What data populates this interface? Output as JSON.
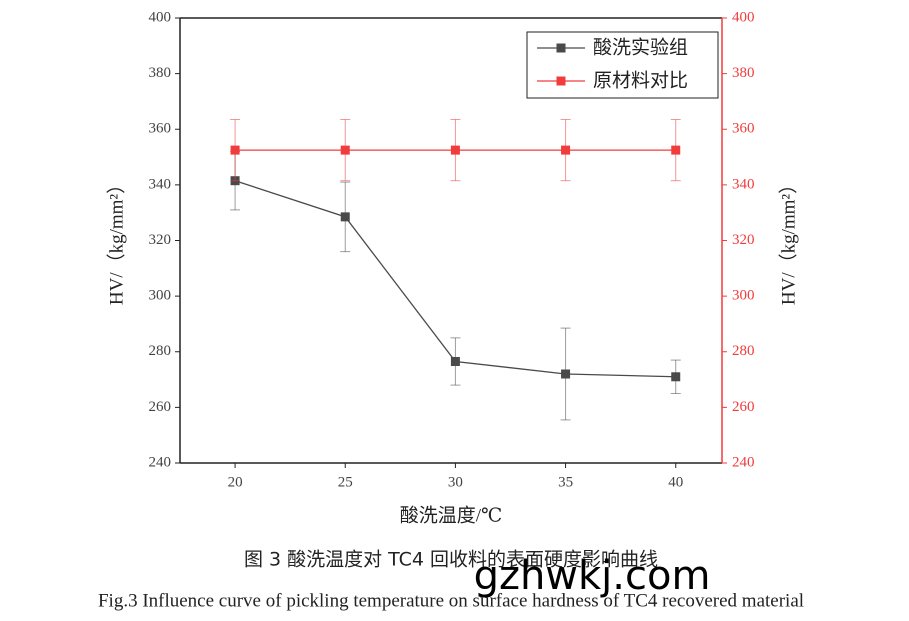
{
  "chart_data": {
    "type": "line",
    "x": [
      20,
      25,
      30,
      35,
      40
    ],
    "xlim": [
      17.5,
      42.1
    ],
    "xticks": [
      20,
      25,
      30,
      35,
      40
    ],
    "xlabel": "酸洗温度/℃",
    "ylabel": "HV/（kg/mm²）",
    "y2label": "HV/（kg/mm²）",
    "ylim": [
      240,
      400
    ],
    "yticks": [
      240,
      260,
      280,
      300,
      320,
      340,
      360,
      380,
      400
    ],
    "y2lim": [
      240,
      400
    ],
    "y2ticks": [
      240,
      260,
      280,
      300,
      320,
      340,
      360,
      380,
      400
    ],
    "y2color": "#f03c3c",
    "legend": "upper right",
    "series": [
      {
        "name": "酸洗实验组",
        "color": "#4a4a4a",
        "values": [
          341.5,
          328.5,
          276.5,
          272,
          271
        ],
        "errors": [
          10.5,
          12.5,
          8.5,
          16.5,
          6
        ]
      },
      {
        "name": "原材料对比",
        "color": "#f03c3c",
        "axis": "y2",
        "values": [
          352.5,
          352.5,
          352.5,
          352.5,
          352.5
        ],
        "errors": [
          11,
          11,
          11,
          11,
          11
        ]
      }
    ]
  },
  "caption": {
    "cn": "图 3  酸洗温度对 TC4 回收料的表面硬度影响曲线",
    "en": "Fig.3 Influence curve of pickling temperature on surface hardness of TC4 recovered material"
  },
  "watermark": "gzhwkj.com"
}
